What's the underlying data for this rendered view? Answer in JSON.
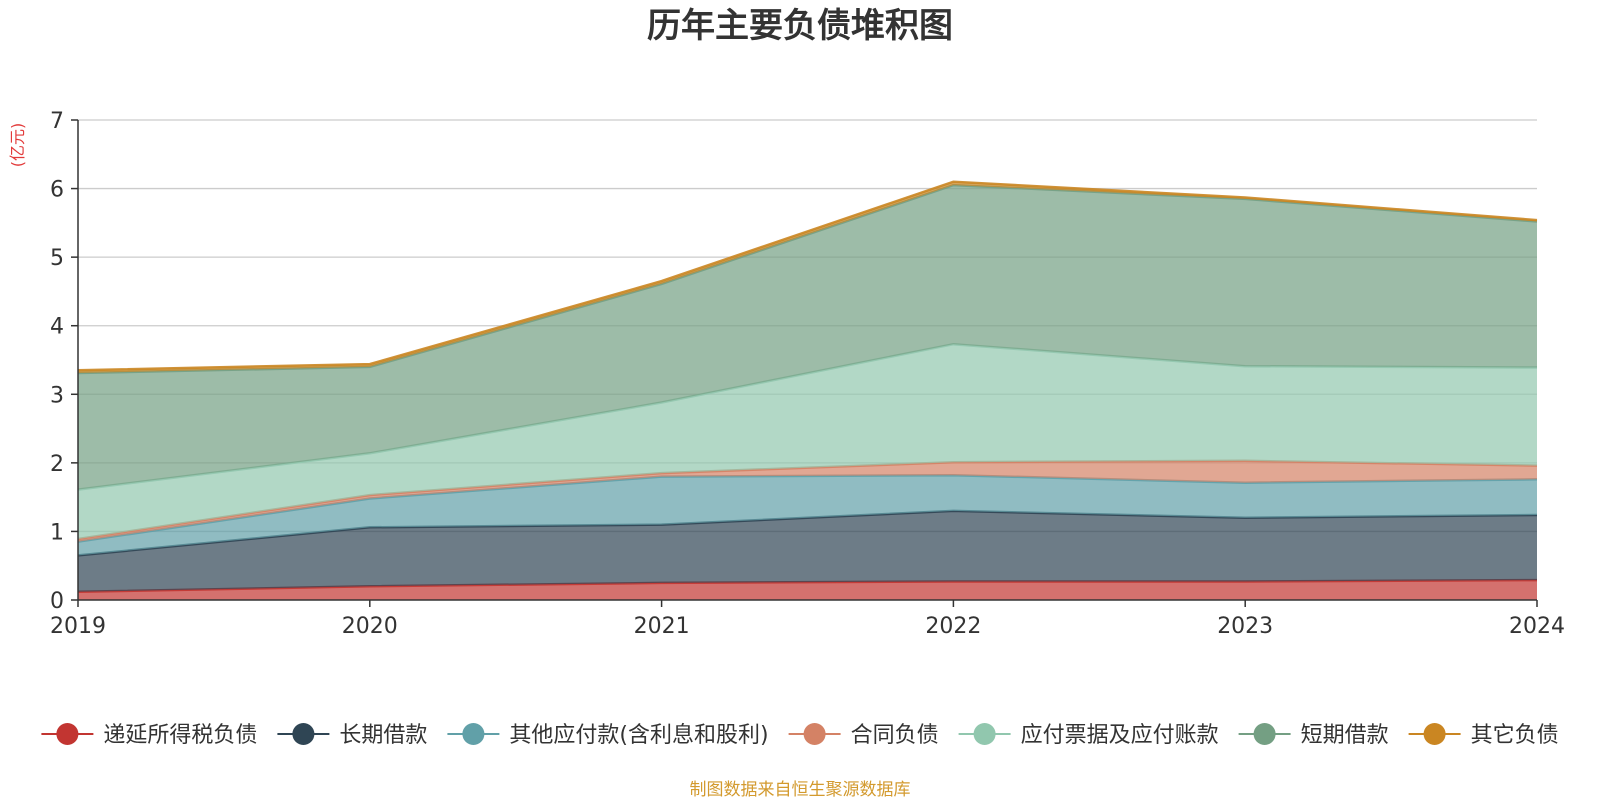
{
  "chart_data": {
    "type": "area",
    "title": "历年主要负债堆积图",
    "unit_label": "(亿元)",
    "x": [
      "2019",
      "2020",
      "2021",
      "2022",
      "2023",
      "2024"
    ],
    "ylim": [
      0,
      7
    ],
    "yticks": [
      "0",
      "1",
      "2",
      "3",
      "4",
      "5",
      "6",
      "7"
    ],
    "grid": true,
    "stacked": true,
    "legend_position": "bottom",
    "series": [
      {
        "name": "递延所得税负债",
        "color": "#c23531",
        "values": [
          0.12,
          0.2,
          0.25,
          0.27,
          0.27,
          0.29
        ]
      },
      {
        "name": "长期借款",
        "color": "#2f4554",
        "values": [
          0.53,
          0.86,
          0.85,
          1.03,
          0.93,
          0.95
        ]
      },
      {
        "name": "其他应付款(含利息和股利)",
        "color": "#61a0a8",
        "values": [
          0.2,
          0.42,
          0.7,
          0.52,
          0.51,
          0.52
        ]
      },
      {
        "name": "合同负债",
        "color": "#d48265",
        "values": [
          0.04,
          0.05,
          0.05,
          0.19,
          0.32,
          0.2
        ]
      },
      {
        "name": "应付票据及应付账款",
        "color": "#91c7ae",
        "values": [
          0.72,
          0.61,
          1.03,
          1.72,
          1.38,
          1.43
        ]
      },
      {
        "name": "短期借款",
        "color": "#749f83",
        "values": [
          1.7,
          1.26,
          1.73,
          2.32,
          2.44,
          2.13
        ]
      },
      {
        "name": "其它负债",
        "color": "#ca8622",
        "values": [
          0.04,
          0.04,
          0.04,
          0.05,
          0.02,
          0.02
        ]
      }
    ],
    "footer": "制图数据来自恒生聚源数据库"
  }
}
